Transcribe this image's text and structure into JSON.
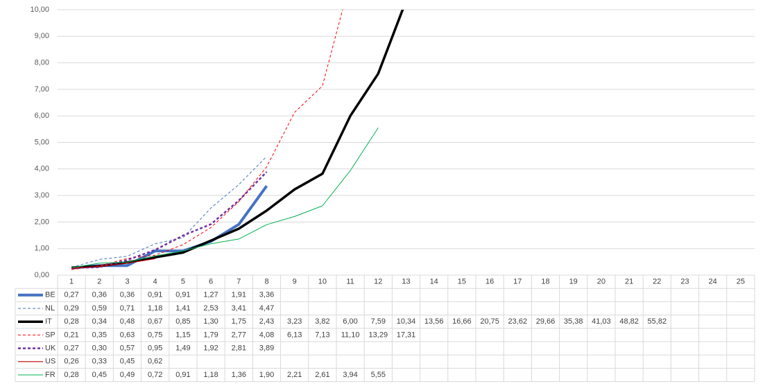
{
  "chart_data": {
    "type": "line",
    "categories": [
      1,
      2,
      3,
      4,
      5,
      6,
      7,
      8,
      9,
      10,
      11,
      12,
      13,
      14,
      15,
      16,
      17,
      18,
      19,
      20,
      21,
      22,
      23,
      24,
      25
    ],
    "ylim": [
      0,
      10
    ],
    "yticks": [
      {
        "value": 0,
        "label": "0,00"
      },
      {
        "value": 1,
        "label": "1,00"
      },
      {
        "value": 2,
        "label": "2,00"
      },
      {
        "value": 3,
        "label": "3,00"
      },
      {
        "value": 4,
        "label": "4,00"
      },
      {
        "value": 5,
        "label": "5,00"
      },
      {
        "value": 6,
        "label": "6,00"
      },
      {
        "value": 7,
        "label": "7,00"
      },
      {
        "value": 8,
        "label": "8,00"
      },
      {
        "value": 9,
        "label": "9,00"
      },
      {
        "value": 10,
        "label": "10,00"
      }
    ],
    "grid": true,
    "series": [
      {
        "name": "BE",
        "color": "#4472c4",
        "line_width": 4,
        "dashed": false,
        "values": [
          0.27,
          0.36,
          0.36,
          0.91,
          0.91,
          1.27,
          1.91,
          3.36,
          null,
          null,
          null,
          null,
          null,
          null,
          null,
          null,
          null,
          null,
          null,
          null,
          null,
          null,
          null,
          null,
          null
        ],
        "value_labels": [
          "0,27",
          "0,36",
          "0,36",
          "0,91",
          "0,91",
          "1,27",
          "1,91",
          "3,36",
          null,
          null,
          null,
          null,
          null,
          null,
          null,
          null,
          null,
          null,
          null,
          null,
          null,
          null,
          null,
          null,
          null
        ]
      },
      {
        "name": "NL",
        "color": "#4472c4",
        "line_width": 1,
        "dashed": true,
        "values": [
          0.29,
          0.59,
          0.71,
          1.18,
          1.41,
          2.53,
          3.41,
          4.47,
          null,
          null,
          null,
          null,
          null,
          null,
          null,
          null,
          null,
          null,
          null,
          null,
          null,
          null,
          null,
          null,
          null
        ],
        "value_labels": [
          "0,29",
          "0,59",
          "0,71",
          "1,18",
          "1,41",
          "2,53",
          "3,41",
          "4,47",
          null,
          null,
          null,
          null,
          null,
          null,
          null,
          null,
          null,
          null,
          null,
          null,
          null,
          null,
          null,
          null,
          null
        ]
      },
      {
        "name": "IT",
        "color": "#000000",
        "line_width": 3.5,
        "dashed": false,
        "values": [
          0.28,
          0.34,
          0.48,
          0.67,
          0.85,
          1.3,
          1.75,
          2.43,
          3.23,
          3.82,
          6.0,
          7.59,
          10.34,
          13.56,
          16.66,
          20.75,
          23.62,
          29.66,
          35.38,
          41.03,
          48.82,
          55.82,
          null,
          null,
          null
        ],
        "value_labels": [
          "0,28",
          "0,34",
          "0,48",
          "0,67",
          "0,85",
          "1,30",
          "1,75",
          "2,43",
          "3,23",
          "3,82",
          "6,00",
          "7,59",
          "10,34",
          "13,56",
          "16,66",
          "20,75",
          "23,62",
          "29,66",
          "35,38",
          "41,03",
          "48,82",
          "55,82",
          null,
          null,
          null
        ]
      },
      {
        "name": "SP",
        "color": "#ff0000",
        "line_width": 1,
        "dashed": true,
        "values": [
          0.21,
          0.35,
          0.63,
          0.75,
          1.15,
          1.79,
          2.77,
          4.08,
          6.13,
          7.13,
          11.1,
          13.29,
          17.31,
          null,
          null,
          null,
          null,
          null,
          null,
          null,
          null,
          null,
          null,
          null,
          null
        ],
        "value_labels": [
          "0,21",
          "0,35",
          "0,63",
          "0,75",
          "1,15",
          "1,79",
          "2,77",
          "4,08",
          "6,13",
          "7,13",
          "11,10",
          "13,29",
          "17,31",
          null,
          null,
          null,
          null,
          null,
          null,
          null,
          null,
          null,
          null,
          null,
          null
        ]
      },
      {
        "name": "UK",
        "color": "#7030a0",
        "line_width": 2.5,
        "dashed": true,
        "values": [
          0.27,
          0.3,
          0.57,
          0.95,
          1.49,
          1.92,
          2.81,
          3.89,
          null,
          null,
          null,
          null,
          null,
          null,
          null,
          null,
          null,
          null,
          null,
          null,
          null,
          null,
          null,
          null,
          null
        ],
        "value_labels": [
          "0,27",
          "0,30",
          "0,57",
          "0,95",
          "1,49",
          "1,92",
          "2,81",
          "3,89",
          null,
          null,
          null,
          null,
          null,
          null,
          null,
          null,
          null,
          null,
          null,
          null,
          null,
          null,
          null,
          null,
          null
        ]
      },
      {
        "name": "US",
        "color": "#c00000",
        "line_width": 1.2,
        "dashed": false,
        "values": [
          0.26,
          0.33,
          0.45,
          0.62,
          null,
          null,
          null,
          null,
          null,
          null,
          null,
          null,
          null,
          null,
          null,
          null,
          null,
          null,
          null,
          null,
          null,
          null,
          null,
          null,
          null
        ],
        "value_labels": [
          "0,26",
          "0,33",
          "0,45",
          "0,62",
          null,
          null,
          null,
          null,
          null,
          null,
          null,
          null,
          null,
          null,
          null,
          null,
          null,
          null,
          null,
          null,
          null,
          null,
          null,
          null,
          null
        ]
      },
      {
        "name": "FR",
        "color": "#00b050",
        "line_width": 1,
        "dashed": false,
        "values": [
          0.28,
          0.45,
          0.49,
          0.72,
          0.91,
          1.18,
          1.36,
          1.9,
          2.21,
          2.61,
          3.94,
          5.55,
          null,
          null,
          null,
          null,
          null,
          null,
          null,
          null,
          null,
          null,
          null,
          null,
          null
        ],
        "value_labels": [
          "0,28",
          "0,45",
          "0,49",
          "0,72",
          "0,91",
          "1,18",
          "1,36",
          "1,90",
          "2,21",
          "2,61",
          "3,94",
          "5,55",
          null,
          null,
          null,
          null,
          null,
          null,
          null,
          null,
          null,
          null,
          null,
          null,
          null
        ]
      }
    ]
  }
}
